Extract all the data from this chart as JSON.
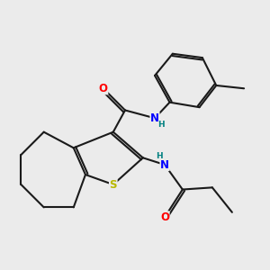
{
  "bg_color": "#ebebeb",
  "bond_color": "#1a1a1a",
  "bond_width": 1.5,
  "atom_colors": {
    "O": "#ff0000",
    "N": "#0000ff",
    "S": "#b8b800",
    "H": "#008080",
    "C": "#1a1a1a"
  },
  "font_size_atom": 8.5,
  "font_size_h": 6.5
}
